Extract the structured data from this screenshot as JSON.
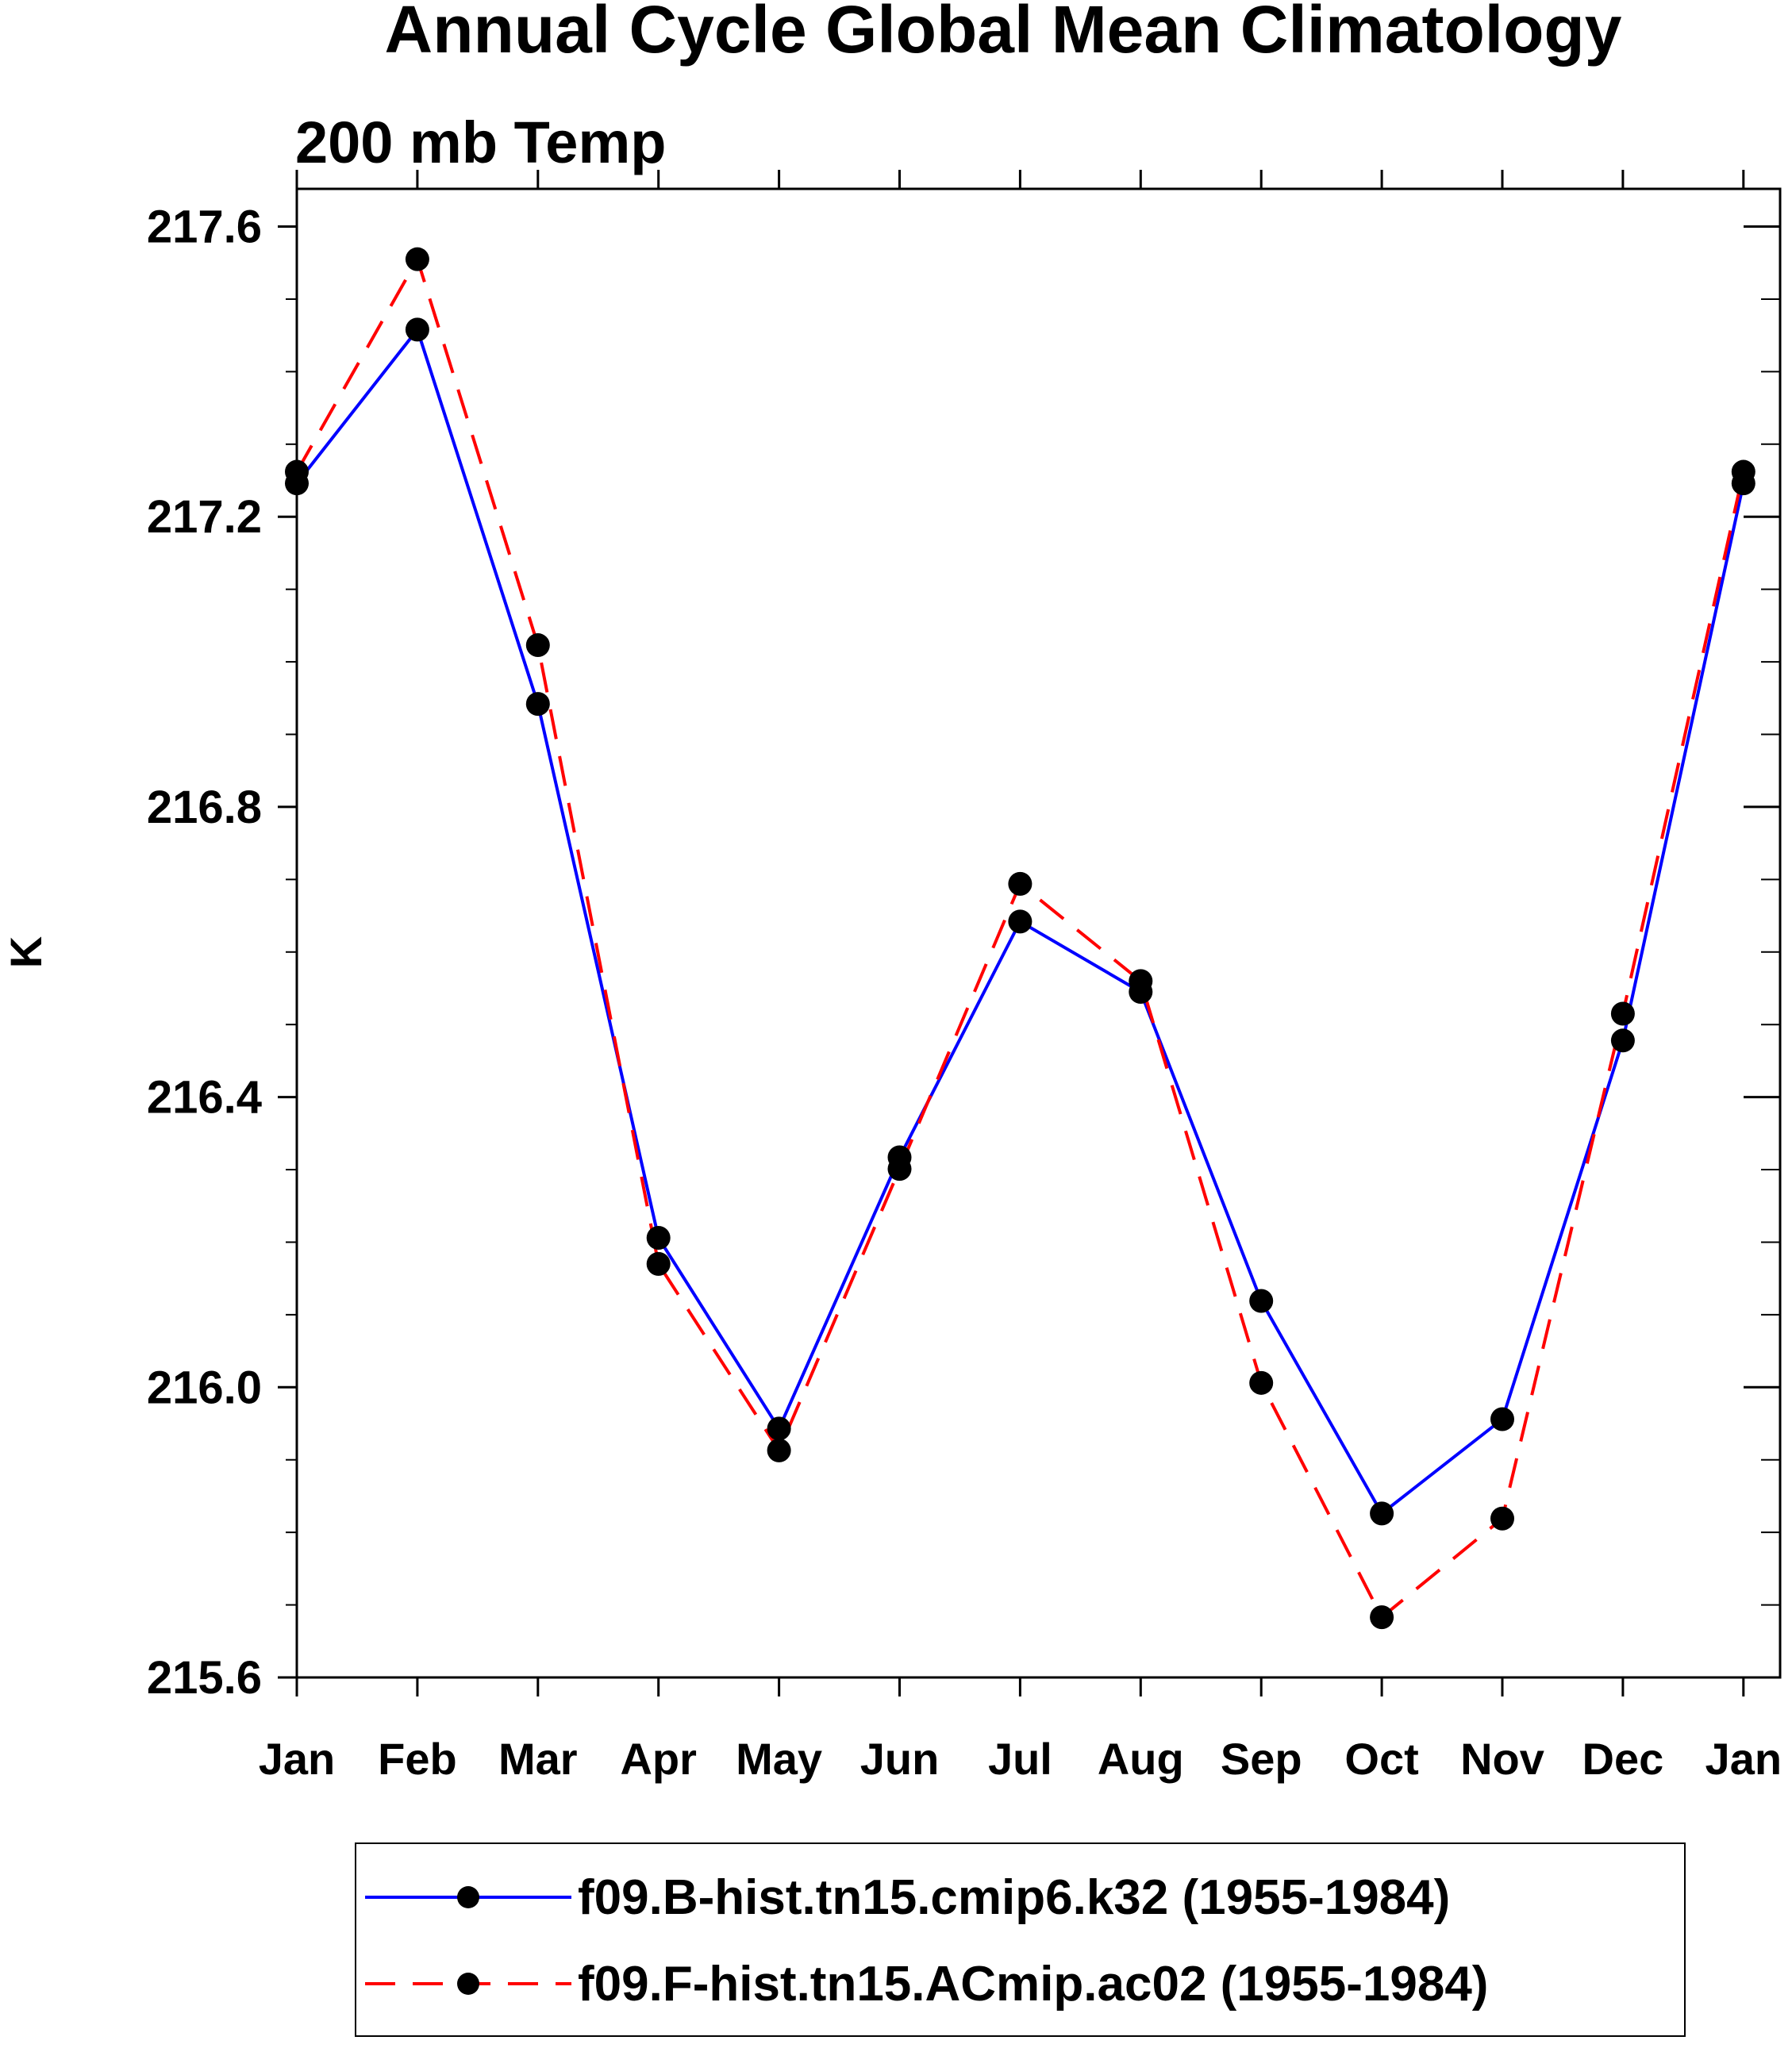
{
  "chart_data": {
    "type": "line",
    "title": "Annual Cycle Global Mean Climatology",
    "subtitle": "200 mb Temp",
    "xlabel": "",
    "ylabel": "K",
    "categories": [
      "Jan",
      "Feb",
      "Mar",
      "Apr",
      "May",
      "Jun",
      "Jul",
      "Aug",
      "Sep",
      "Oct",
      "Nov",
      "Dec",
      "Jan"
    ],
    "ylim": [
      215.6,
      217.652
    ],
    "yticks": [
      215.6,
      216.0,
      216.4,
      216.8,
      217.2,
      217.6
    ],
    "ytick_labels": [
      "215.6",
      "216.0",
      "216.4",
      "216.8",
      "217.2",
      "217.6"
    ],
    "grid": false,
    "legend_position": "bottom",
    "series": [
      {
        "name": "f09.B-hist.tn15.cmip6.k32 (1955-1984)",
        "color": "#0000ff",
        "dash": "solid",
        "values": [
          217.246,
          217.458,
          216.942,
          216.206,
          215.943,
          216.317,
          216.642,
          216.545,
          216.119,
          215.826,
          215.956,
          216.478,
          217.246
        ]
      },
      {
        "name": "f09.F-hist.tn15.ACmip.ac02 (1955-1984)",
        "color": "#ff0000",
        "dash": "dashed",
        "values": [
          217.262,
          217.555,
          217.023,
          216.17,
          215.913,
          216.301,
          216.694,
          216.56,
          216.006,
          215.683,
          215.819,
          216.515,
          217.262
        ]
      }
    ]
  }
}
